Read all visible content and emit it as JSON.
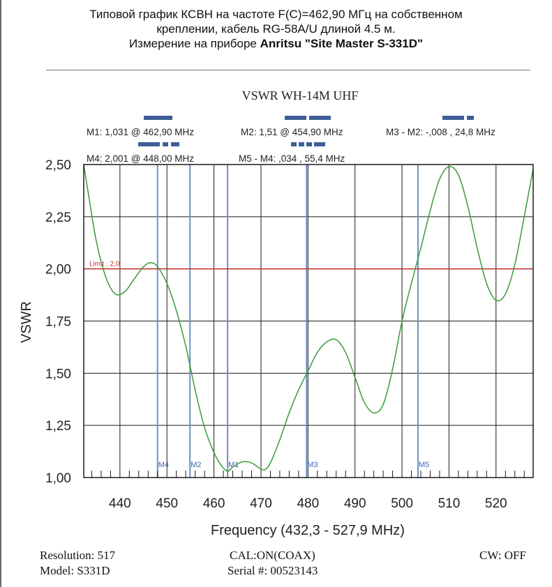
{
  "header": {
    "line1": "Типовой график КСВН на частоте F(C)=462,90 МГц на собственном",
    "line2": "креплении, кабель RG-58A/U длиной 4.5 м.",
    "line3_prefix": "Измерение на приборе ",
    "line3_bold": "Anritsu \"Site Master S-331D\""
  },
  "chart_data": {
    "type": "line",
    "title": "VSWR WH-14M UHF",
    "xlabel": "Frequency (432,3 - 527,9 MHz)",
    "ylabel": "VSWR",
    "xlim": [
      432.3,
      527.9
    ],
    "ylim": [
      1.0,
      2.5
    ],
    "xticks": [
      440,
      450,
      460,
      470,
      480,
      490,
      500,
      510,
      520
    ],
    "yticks": [
      "1,00",
      "1,25",
      "1,50",
      "1,75",
      "2,00",
      "2,25",
      "2,50"
    ],
    "grid": true,
    "series": [
      {
        "color": "#3a9a3a",
        "points": [
          [
            432.3,
            2.5
          ],
          [
            433.5,
            2.33
          ],
          [
            435,
            2.13
          ],
          [
            437,
            1.96
          ],
          [
            439,
            1.88
          ],
          [
            441,
            1.89
          ],
          [
            443,
            1.95
          ],
          [
            445,
            2.01
          ],
          [
            446.5,
            2.03
          ],
          [
            448,
            2.01
          ],
          [
            450,
            1.93
          ],
          [
            452,
            1.8
          ],
          [
            454,
            1.63
          ],
          [
            456,
            1.42
          ],
          [
            458,
            1.24
          ],
          [
            460,
            1.12
          ],
          [
            461.5,
            1.06
          ],
          [
            462.9,
            1.031
          ],
          [
            464,
            1.05
          ],
          [
            466,
            1.075
          ],
          [
            468,
            1.07
          ],
          [
            470,
            1.04
          ],
          [
            471,
            1.04
          ],
          [
            472,
            1.07
          ],
          [
            474,
            1.18
          ],
          [
            476,
            1.31
          ],
          [
            478,
            1.42
          ],
          [
            480,
            1.51
          ],
          [
            482,
            1.6
          ],
          [
            484,
            1.65
          ],
          [
            486,
            1.66
          ],
          [
            488,
            1.6
          ],
          [
            490,
            1.48
          ],
          [
            492,
            1.36
          ],
          [
            494,
            1.31
          ],
          [
            496,
            1.35
          ],
          [
            498,
            1.52
          ],
          [
            500,
            1.75
          ],
          [
            502,
            1.93
          ],
          [
            504,
            2.1
          ],
          [
            506,
            2.28
          ],
          [
            508,
            2.43
          ],
          [
            510,
            2.49
          ],
          [
            512,
            2.45
          ],
          [
            514,
            2.3
          ],
          [
            516,
            2.1
          ],
          [
            518,
            1.93
          ],
          [
            520,
            1.85
          ],
          [
            522,
            1.88
          ],
          [
            524,
            2.02
          ],
          [
            526,
            2.25
          ],
          [
            527.9,
            2.48
          ]
        ]
      }
    ],
    "limit": {
      "value": 2.0,
      "label": "Limit : 2,0",
      "color": "#c0302a"
    },
    "markers": [
      {
        "name": "M1",
        "freq": 462.9
      },
      {
        "name": "M2",
        "freq": 454.9
      },
      {
        "name": "M3",
        "freq": 479.7
      },
      {
        "name": "M4",
        "freq": 448.0
      },
      {
        "name": "M5",
        "freq": 503.4
      }
    ],
    "marker_color": "#6d8fc7",
    "marker_readouts": {
      "row1": [
        "M1: 1,031  @ 462,90 MHz",
        "M2: 1,51  @ 454,90 MHz",
        "M3 - M2: -,008   , 24,8 MHz"
      ],
      "row2": [
        "M4: 2,001  @ 448,00 MHz",
        "M5 - M4: ,034   , 55,4 MHz"
      ]
    }
  },
  "footer": {
    "resolution": "Resolution:  517",
    "model": "Model: S331D",
    "cal": "CAL:ON(COAX)",
    "serial": "Serial #: 00523143",
    "cw": "CW: OFF"
  }
}
